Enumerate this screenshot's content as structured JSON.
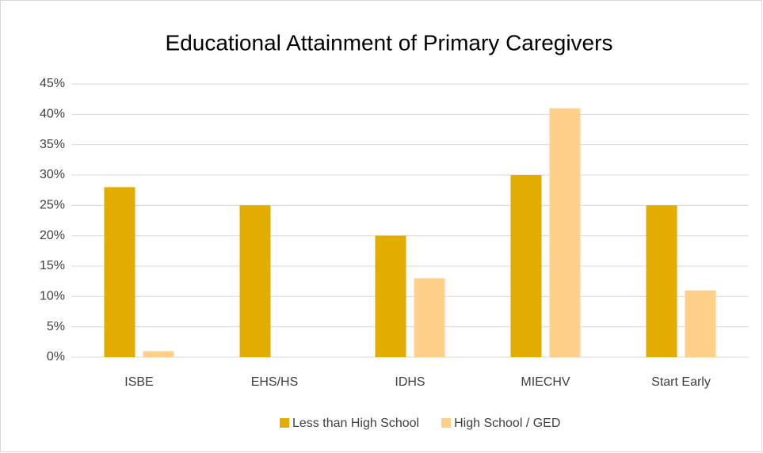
{
  "chart_data": {
    "type": "bar",
    "title": "Educational Attainment of Primary Caregivers",
    "categories": [
      "ISBE",
      "EHS/HS",
      "IDHS",
      "MIECHV",
      "Start Early"
    ],
    "series": [
      {
        "name": "Less than High School",
        "color": "#e2ac00",
        "values": [
          28,
          25,
          20,
          30,
          25
        ]
      },
      {
        "name": "High School / GED",
        "color": "#ffd08a",
        "values": [
          1,
          0,
          13,
          41,
          11
        ]
      }
    ],
    "ylim": [
      0,
      45
    ],
    "yticks": [
      {
        "value": 0,
        "label": "0%"
      },
      {
        "value": 5,
        "label": "5%"
      },
      {
        "value": 10,
        "label": "10%"
      },
      {
        "value": 15,
        "label": "15%"
      },
      {
        "value": 20,
        "label": "20%"
      },
      {
        "value": 25,
        "label": "25%"
      },
      {
        "value": 30,
        "label": "30%"
      },
      {
        "value": 35,
        "label": "35%"
      },
      {
        "value": 40,
        "label": "40%"
      },
      {
        "value": 45,
        "label": "45%"
      }
    ],
    "grid": true,
    "legend": "bottom"
  }
}
